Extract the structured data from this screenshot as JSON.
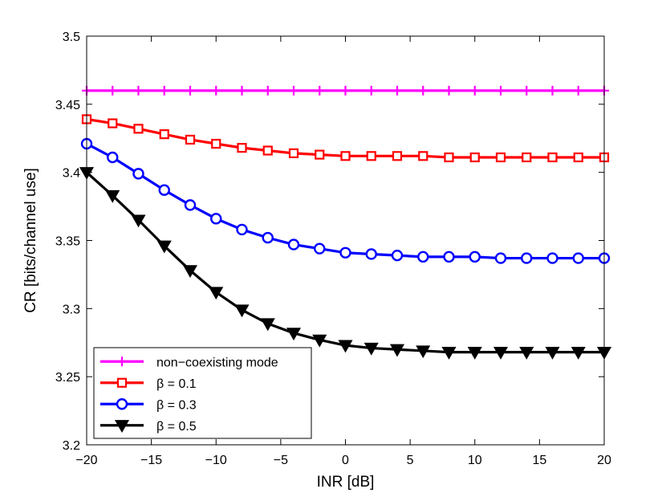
{
  "chart_data": {
    "type": "line",
    "title": "",
    "xlabel": "INR [dB]",
    "ylabel": "CR [bits/channel use]",
    "xlim": [
      -20,
      20
    ],
    "ylim": [
      3.2,
      3.5
    ],
    "grid": false,
    "legend_position": "bottom-left",
    "x_ticks": [
      -20,
      -15,
      -10,
      -5,
      0,
      5,
      10,
      15,
      20
    ],
    "x_tick_labels": [
      "−20",
      "−15",
      "−10",
      "−5",
      "0",
      "5",
      "10",
      "15",
      "20"
    ],
    "y_ticks": [
      3.2,
      3.25,
      3.3,
      3.35,
      3.4,
      3.45,
      3.5
    ],
    "y_tick_labels": [
      "3.2",
      "3.25",
      "3.3",
      "3.35",
      "3.4",
      "3.45",
      "3.5"
    ],
    "x": [
      -20,
      -18,
      -16,
      -14,
      -12,
      -10,
      -8,
      -6,
      -4,
      -2,
      0,
      2,
      4,
      6,
      8,
      10,
      12,
      14,
      16,
      18,
      20
    ],
    "series": [
      {
        "name": "non−coexisting mode",
        "color": "#ff00ff",
        "marker": "plus",
        "values": [
          3.46,
          3.46,
          3.46,
          3.46,
          3.46,
          3.46,
          3.46,
          3.46,
          3.46,
          3.46,
          3.46,
          3.46,
          3.46,
          3.46,
          3.46,
          3.46,
          3.46,
          3.46,
          3.46,
          3.46,
          3.46
        ]
      },
      {
        "name": "β = 0.1",
        "color": "#ff0000",
        "marker": "square",
        "values": [
          3.439,
          3.436,
          3.432,
          3.428,
          3.424,
          3.421,
          3.418,
          3.416,
          3.414,
          3.413,
          3.412,
          3.412,
          3.412,
          3.412,
          3.411,
          3.411,
          3.411,
          3.411,
          3.411,
          3.411,
          3.411
        ]
      },
      {
        "name": "β = 0.3",
        "color": "#0000ff",
        "marker": "circle",
        "values": [
          3.421,
          3.411,
          3.399,
          3.387,
          3.376,
          3.366,
          3.358,
          3.352,
          3.347,
          3.344,
          3.341,
          3.34,
          3.339,
          3.338,
          3.338,
          3.338,
          3.337,
          3.337,
          3.337,
          3.337,
          3.337
        ]
      },
      {
        "name": "β = 0.5",
        "color": "#000000",
        "marker": "triangle-down",
        "values": [
          3.4,
          3.383,
          3.365,
          3.346,
          3.328,
          3.312,
          3.299,
          3.289,
          3.282,
          3.277,
          3.273,
          3.271,
          3.27,
          3.269,
          3.268,
          3.268,
          3.268,
          3.268,
          3.268,
          3.268,
          3.268
        ]
      }
    ]
  }
}
